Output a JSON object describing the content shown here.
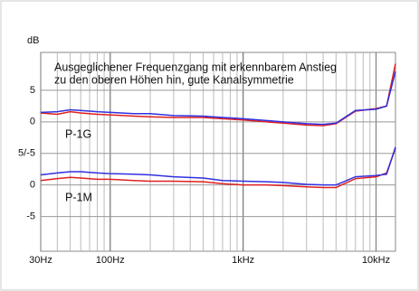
{
  "chart_data": {
    "type": "line",
    "y_unit": "dB",
    "title_lines": [
      "Ausgeglichener Frequenzgang mit erkennbarem Anstieg",
      "zu den oberen Höhen hin, gute Kanalsymmetrie"
    ],
    "group_labels": [
      "P-1G",
      "P-1M"
    ],
    "x": [
      30,
      40,
      50,
      60,
      80,
      100,
      150,
      200,
      300,
      500,
      700,
      1000,
      1500,
      2000,
      3000,
      4000,
      5000,
      7000,
      10000,
      12000,
      14000
    ],
    "log_x": true,
    "xlim": [
      30,
      14000
    ],
    "xticks": [
      {
        "value": 30,
        "label": "30Hz"
      },
      {
        "value": 100,
        "label": "100Hz"
      },
      {
        "value": 1000,
        "label": "1kHz"
      },
      {
        "value": 10000,
        "label": "10kHz"
      }
    ],
    "ylim": [
      -20.5,
      11
    ],
    "yticks": [
      5,
      0,
      {
        "value": -5,
        "label": "5/-5"
      },
      {
        "value": -10,
        "label": "0"
      },
      {
        "value": -15,
        "label": "-5"
      }
    ],
    "grid": true,
    "series": [
      {
        "color": "#e02020",
        "values": [
          1.4,
          1.2,
          1.6,
          1.4,
          1.2,
          1.1,
          0.9,
          0.8,
          0.7,
          0.7,
          0.5,
          0.3,
          0,
          -0.2,
          -0.5,
          -0.6,
          -0.3,
          1.7,
          2.1,
          2.5,
          9.2
        ]
      },
      {
        "color": "#3030e0",
        "values": [
          1.5,
          1.6,
          1.9,
          1.8,
          1.6,
          1.5,
          1.3,
          1.3,
          1.0,
          0.9,
          0.7,
          0.5,
          0.2,
          0,
          -0.3,
          -0.4,
          -0.2,
          1.8,
          2.0,
          2.5,
          8
        ]
      },
      {
        "color": "#e02020",
        "values": [
          -9.3,
          -9.0,
          -8.8,
          -8.9,
          -9.1,
          -9.1,
          -9.3,
          -9.4,
          -9.4,
          -9.5,
          -9.8,
          -10,
          -10,
          -10.1,
          -10.3,
          -10.4,
          -10.4,
          -9.0,
          -8.7,
          -8.1,
          -4.2
        ]
      },
      {
        "color": "#3030e0",
        "values": [
          -8.4,
          -8.1,
          -7.9,
          -7.9,
          -8.1,
          -8.2,
          -8.3,
          -8.4,
          -8.7,
          -8.9,
          -9.3,
          -9.4,
          -9.5,
          -9.6,
          -9.9,
          -10,
          -10,
          -8.7,
          -8.5,
          -8.3,
          -4.0
        ]
      }
    ]
  }
}
